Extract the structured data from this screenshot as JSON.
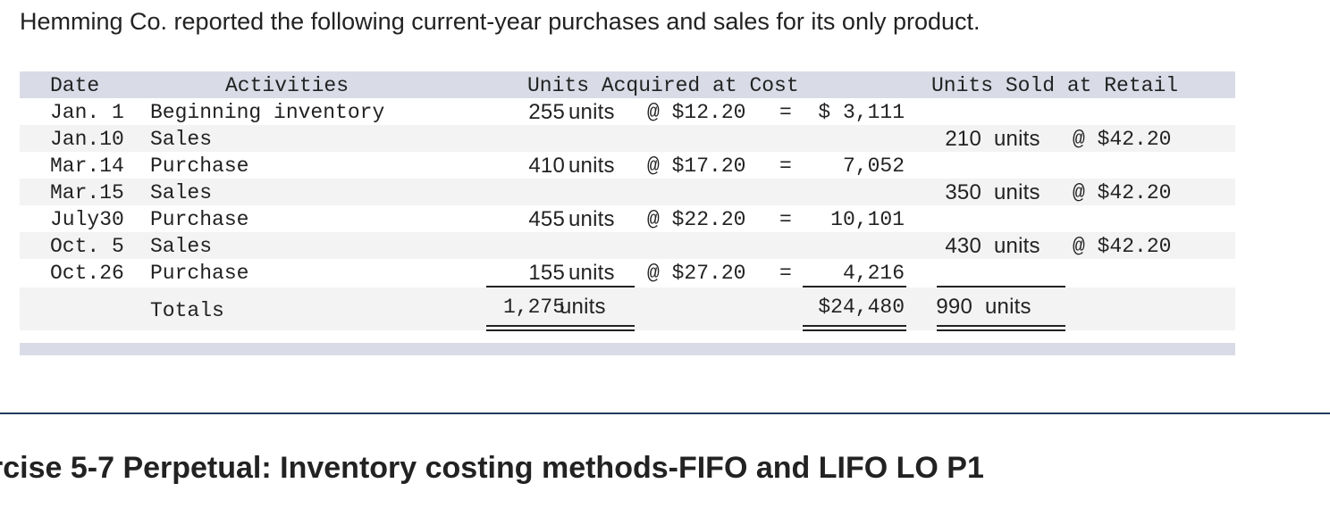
{
  "intro_text": "Hemming Co. reported the following current-year purchases and sales for its only product.",
  "table": {
    "headers": {
      "date": "Date",
      "activities": "Activities",
      "acquired": "Units Acquired at Cost",
      "sold": "Units Sold at Retail"
    },
    "rows": [
      {
        "date": "Jan. 1",
        "activity": "Beginning inventory",
        "acq_units": "255",
        "acq_unit_label": "units",
        "acq_at": "@ $12.20",
        "acq_eq": "=",
        "acq_total": "$ 3,111",
        "sold_units": "",
        "sold_unit_label": "",
        "sold_at": ""
      },
      {
        "date": "Jan.10",
        "activity": "Sales",
        "acq_units": "",
        "acq_unit_label": "",
        "acq_at": "",
        "acq_eq": "",
        "acq_total": "",
        "sold_units": "210",
        "sold_unit_label": "units",
        "sold_at": "@ $42.20"
      },
      {
        "date": "Mar.14",
        "activity": "Purchase",
        "acq_units": "410",
        "acq_unit_label": "units",
        "acq_at": "@ $17.20",
        "acq_eq": "=",
        "acq_total": "7,052",
        "sold_units": "",
        "sold_unit_label": "",
        "sold_at": ""
      },
      {
        "date": "Mar.15",
        "activity": "Sales",
        "acq_units": "",
        "acq_unit_label": "",
        "acq_at": "",
        "acq_eq": "",
        "acq_total": "",
        "sold_units": "350",
        "sold_unit_label": "units",
        "sold_at": "@ $42.20"
      },
      {
        "date": "July30",
        "activity": "Purchase",
        "acq_units": "455",
        "acq_unit_label": "units",
        "acq_at": "@ $22.20",
        "acq_eq": "=",
        "acq_total": "10,101",
        "sold_units": "",
        "sold_unit_label": "",
        "sold_at": ""
      },
      {
        "date": "Oct. 5",
        "activity": "Sales",
        "acq_units": "",
        "acq_unit_label": "",
        "acq_at": "",
        "acq_eq": "",
        "acq_total": "",
        "sold_units": "430",
        "sold_unit_label": "units",
        "sold_at": "@ $42.20"
      },
      {
        "date": "Oct.26",
        "activity": "Purchase",
        "acq_units": "155",
        "acq_unit_label": "units",
        "acq_at": "@ $27.20",
        "acq_eq": "=",
        "acq_total": "4,216",
        "sold_units": "",
        "sold_unit_label": "",
        "sold_at": ""
      }
    ],
    "totals": {
      "label": "Totals",
      "acq_units": "1,275",
      "acq_unit_label": "units",
      "acq_total": "$24,480",
      "sold_units": "990",
      "sold_unit_label": "units"
    }
  },
  "section_heading": "rcise 5-7 Perpetual: Inventory costing methods-FIFO and LIFO LO P1"
}
